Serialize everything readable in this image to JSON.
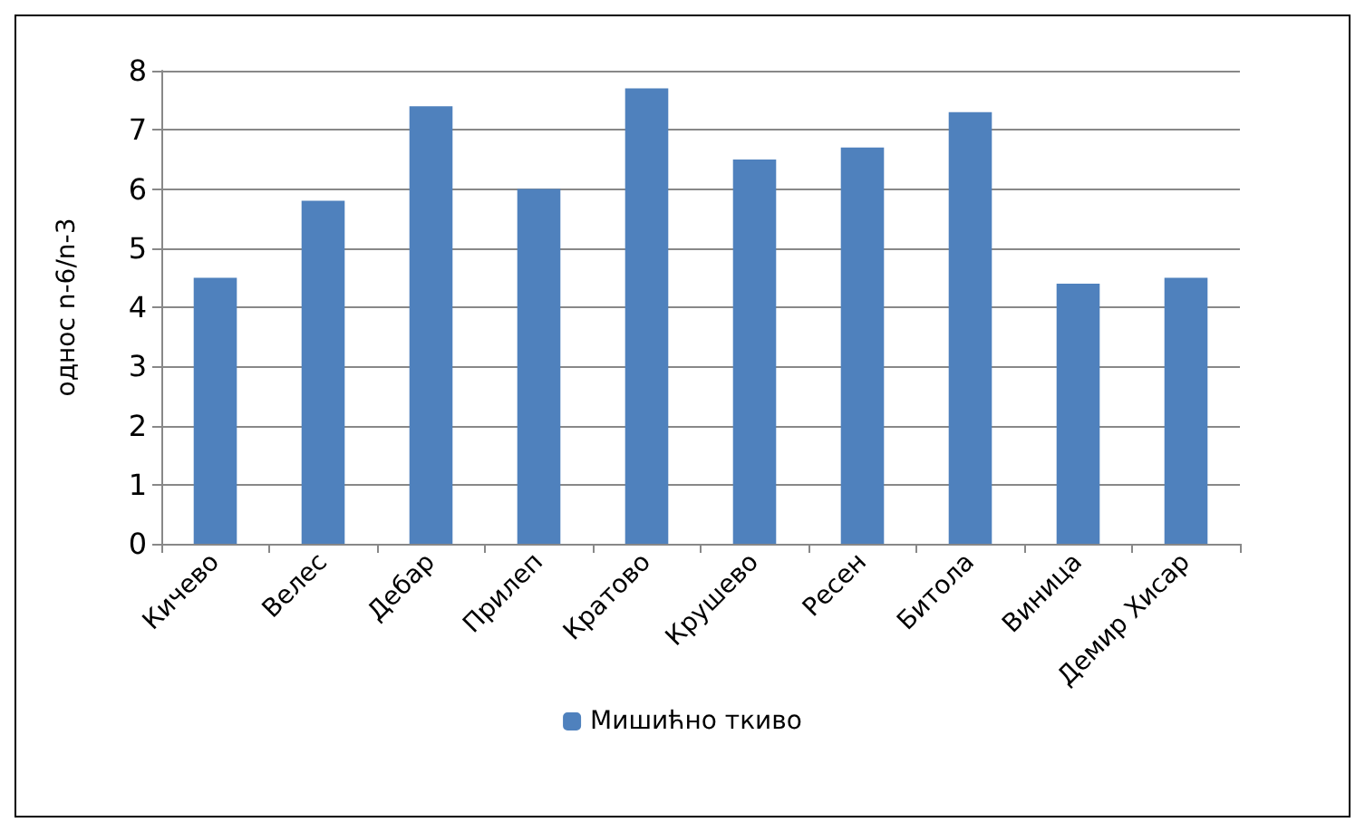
{
  "chart_data": {
    "type": "bar",
    "ylabel": "однос n-6/n-3",
    "categories": [
      "Кичево",
      "Велес",
      "Дебар",
      "Прилеп",
      "Кратово",
      "Крушево",
      "Ресен",
      "Битола",
      "Виница",
      "Демир Хисар"
    ],
    "series": [
      {
        "name": "Мишићно ткиво",
        "color": "#4f81bd",
        "values": [
          4.5,
          5.8,
          7.4,
          6.0,
          7.7,
          6.5,
          6.7,
          7.3,
          4.4,
          4.5
        ]
      }
    ],
    "ylim": [
      0,
      8
    ],
    "yticks": [
      0,
      1,
      2,
      3,
      4,
      5,
      6,
      7,
      8
    ],
    "grid": "y",
    "legend": "bottom"
  }
}
